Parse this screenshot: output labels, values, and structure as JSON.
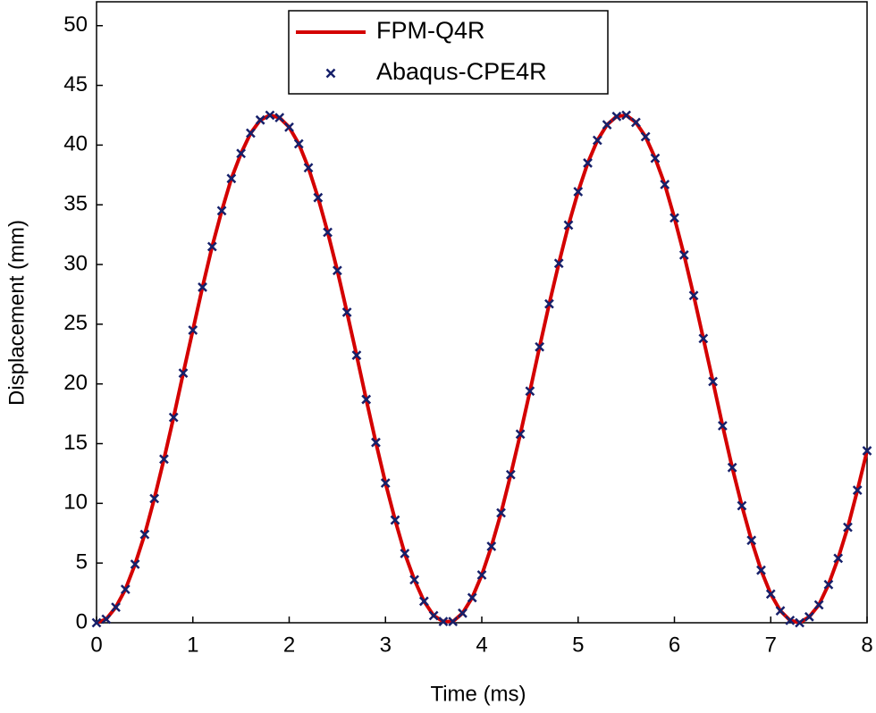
{
  "chart_data": {
    "type": "line",
    "xlabel": "Time (ms)",
    "ylabel": "Displacement (mm)",
    "xlim": [
      0,
      8
    ],
    "xticks": [
      0,
      1,
      2,
      3,
      4,
      5,
      6,
      7,
      8
    ],
    "ylim": [
      0,
      52
    ],
    "yticks": [
      0,
      5,
      10,
      15,
      20,
      25,
      30,
      35,
      40,
      45,
      50
    ],
    "legend": "top-center",
    "x": [
      0,
      0.1,
      0.2,
      0.3,
      0.4,
      0.5,
      0.6,
      0.7,
      0.8,
      0.9,
      1,
      1.1,
      1.2,
      1.3,
      1.4,
      1.5,
      1.6,
      1.7,
      1.8,
      1.9,
      2,
      2.1,
      2.2,
      2.3,
      2.4,
      2.5,
      2.6,
      2.7,
      2.8,
      2.9,
      3,
      3.1,
      3.2,
      3.3,
      3.4,
      3.5,
      3.6,
      3.7,
      3.8,
      3.9,
      4,
      4.1,
      4.2,
      4.3,
      4.4,
      4.5,
      4.6,
      4.7,
      4.8,
      4.9,
      5,
      5.1,
      5.2,
      5.3,
      5.4,
      5.5,
      5.6,
      5.7,
      5.8,
      5.9,
      6,
      6.1,
      6.2,
      6.3,
      6.4,
      6.5,
      6.6,
      6.7,
      6.8,
      6.9,
      7,
      7.1,
      7.2,
      7.3,
      7.4,
      7.5,
      7.6,
      7.7,
      7.8,
      7.9,
      8
    ],
    "series": [
      {
        "name": "FPM-Q4R",
        "mode": "line",
        "color": "#d40000",
        "values": [
          0,
          0.3,
          1.3,
          2.8,
          4.9,
          7.4,
          10.4,
          13.7,
          17.2,
          20.9,
          24.5,
          28.1,
          31.5,
          34.5,
          37.2,
          39.3,
          41,
          42.1,
          42.5,
          42.3,
          41.5,
          40.1,
          38.1,
          35.6,
          32.7,
          29.5,
          26,
          22.4,
          18.7,
          15.1,
          11.7,
          8.6,
          5.8,
          3.6,
          1.8,
          0.6,
          0.1,
          0.1,
          0.8,
          2.1,
          4,
          6.4,
          9.2,
          12.4,
          15.8,
          19.4,
          23.1,
          26.7,
          30.1,
          33.3,
          36.1,
          38.5,
          40.4,
          41.7,
          42.4,
          42.5,
          41.9,
          40.7,
          38.9,
          36.7,
          33.9,
          30.8,
          27.4,
          23.8,
          20.2,
          16.5,
          13,
          9.8,
          6.9,
          4.4,
          2.4,
          1,
          0.2,
          0,
          0.5,
          1.5,
          3.2,
          5.4,
          8,
          11.1,
          14.4
        ]
      },
      {
        "name": "Abaqus-CPE4R",
        "mode": "marker",
        "color": "#16206a",
        "values": [
          0,
          0.3,
          1.3,
          2.8,
          4.9,
          7.4,
          10.4,
          13.7,
          17.2,
          20.9,
          24.5,
          28.1,
          31.5,
          34.5,
          37.2,
          39.3,
          41,
          42.1,
          42.5,
          42.3,
          41.5,
          40.1,
          38.1,
          35.6,
          32.7,
          29.5,
          26,
          22.4,
          18.7,
          15.1,
          11.7,
          8.6,
          5.8,
          3.6,
          1.8,
          0.6,
          0.1,
          0.1,
          0.8,
          2.1,
          4,
          6.4,
          9.2,
          12.4,
          15.8,
          19.4,
          23.1,
          26.7,
          30.1,
          33.3,
          36.1,
          38.5,
          40.4,
          41.7,
          42.4,
          42.5,
          41.9,
          40.7,
          38.9,
          36.7,
          33.9,
          30.8,
          27.4,
          23.8,
          20.2,
          16.5,
          13,
          9.8,
          6.9,
          4.4,
          2.4,
          1,
          0.2,
          0,
          0.5,
          1.5,
          3.2,
          5.4,
          8,
          11.1,
          14.4
        ]
      }
    ]
  }
}
